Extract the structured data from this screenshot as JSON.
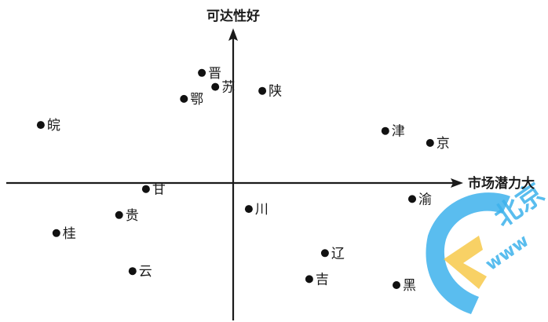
{
  "chart_data": {
    "type": "scatter",
    "title": "",
    "xlabel": "市场潜力大",
    "ylabel": "可达性好",
    "xlim": [
      -10,
      10
    ],
    "ylim": [
      -7,
      7
    ],
    "grid": false,
    "legend": "none",
    "points": [
      {
        "label": "晋",
        "x": -1.4,
        "y": 5.5
      },
      {
        "label": "苏",
        "x": -0.8,
        "y": 4.8
      },
      {
        "label": "鄂",
        "x": -2.2,
        "y": 4.2
      },
      {
        "label": "陕",
        "x": 1.3,
        "y": 4.6
      },
      {
        "label": "皖",
        "x": -8.6,
        "y": 2.9
      },
      {
        "label": "津",
        "x": 6.8,
        "y": 2.6
      },
      {
        "label": "京",
        "x": 8.8,
        "y": 2.0
      },
      {
        "label": "甘",
        "x": -3.9,
        "y": -0.3
      },
      {
        "label": "渝",
        "x": 8.0,
        "y": -0.8
      },
      {
        "label": "川",
        "x": 0.7,
        "y": -1.3
      },
      {
        "label": "贵",
        "x": -5.1,
        "y": -1.6
      },
      {
        "label": "桂",
        "x": -7.9,
        "y": -2.5
      },
      {
        "label": "辽",
        "x": 4.1,
        "y": -3.5
      },
      {
        "label": "云",
        "x": -4.5,
        "y": -4.4
      },
      {
        "label": "吉",
        "x": 3.4,
        "y": -4.8
      },
      {
        "label": "黑",
        "x": 7.3,
        "y": -5.1
      }
    ]
  },
  "colors": {
    "axis": "#1a1a1a",
    "point": "#111111",
    "watermark_blue": "#3db2ec",
    "watermark_yellow": "#f7c94a"
  },
  "watermark": {
    "icon": "watermark-logo-icon",
    "glyph": "北京",
    "text": "www"
  }
}
